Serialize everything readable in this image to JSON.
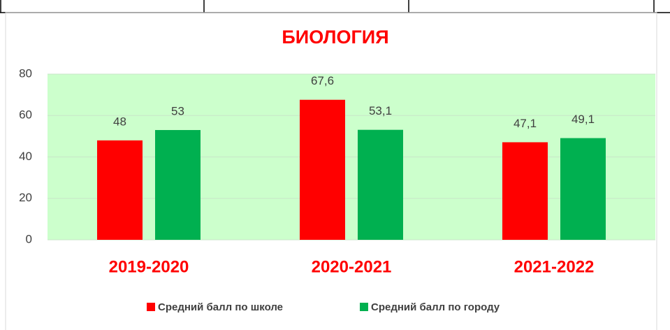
{
  "chart_data": {
    "type": "bar",
    "title": "БИОЛОГИЯ",
    "categories": [
      "2019-2020",
      "2020-2021",
      "2021-2022"
    ],
    "series": [
      {
        "name": "Средний балл по школе",
        "color": "#ff0000",
        "values": [
          48,
          67.6,
          47.1
        ],
        "value_labels": [
          "48",
          "67,6",
          "47,1"
        ]
      },
      {
        "name": "Средний балл по городу",
        "color": "#00b050",
        "values": [
          53,
          53.1,
          49.1
        ],
        "value_labels": [
          "53",
          "53,1",
          "49,1"
        ]
      }
    ],
    "ylim": [
      0,
      80
    ],
    "yticks": [
      0,
      20,
      40,
      60,
      80
    ],
    "grid": true,
    "plot_background": "#ccffcc",
    "legend": "bottom"
  }
}
